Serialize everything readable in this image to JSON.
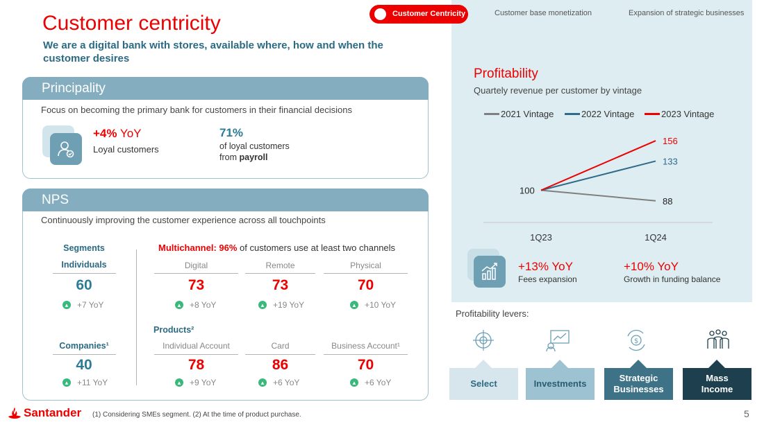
{
  "header": {
    "title": "Customer centricity",
    "subtitle": "We are a digital bank with stores, available where, how and when the customer desires"
  },
  "nav": {
    "active": "Customer Centricity",
    "tabs": [
      "Customer base monetization",
      "Expansion of strategic businesses"
    ]
  },
  "principality": {
    "title": "Principality",
    "description": "Focus on becoming the primary bank for customers in their financial decisions",
    "kpi1_value": "+4%",
    "kpi1_suffix": "YoY",
    "kpi1_label": "Loyal customers",
    "kpi2_value": "71%",
    "kpi2_line1": "of loyal customers",
    "kpi2_line2_prefix": "from",
    "kpi2_line2_bold": "payroll"
  },
  "nps": {
    "title": "NPS",
    "description": "Continuously improving the customer experience across all touchpoints",
    "segments_label": "Segments",
    "multichannel_bold": "Multichannel: 96%",
    "multichannel_rest": "of customers use at least two channels",
    "products_label": "Products²",
    "individuals": {
      "label": "Individuals",
      "value": "60",
      "yoy": "+7 YoY"
    },
    "companies": {
      "label": "Companies¹",
      "value": "40",
      "yoy": "+11 YoY"
    },
    "channels": [
      {
        "label": "Digital",
        "value": "73",
        "yoy": "+8 YoY"
      },
      {
        "label": "Remote",
        "value": "73",
        "yoy": "+19 YoY"
      },
      {
        "label": "Physical",
        "value": "70",
        "yoy": "+10 YoY"
      }
    ],
    "products": [
      {
        "label": "Individual Account",
        "value": "78",
        "yoy": "+9 YoY"
      },
      {
        "label": "Card",
        "value": "86",
        "yoy": "+6 YoY"
      },
      {
        "label": "Business Account¹",
        "value": "70",
        "yoy": "+6 YoY"
      }
    ]
  },
  "profitability": {
    "title": "Profitability",
    "subtitle": "Quartely revenue per customer by vintage",
    "fees_value": "+13% YoY",
    "fees_label": "Fees expansion",
    "funding_value": "+10% YoY",
    "funding_label": "Growth in funding balance"
  },
  "chart_data": {
    "type": "line",
    "title": "Quartely revenue per customer by vintage",
    "x": [
      "1Q23",
      "1Q24"
    ],
    "series": [
      {
        "name": "2021 Vintage",
        "values": [
          100,
          88
        ],
        "color": "#7f7f7f"
      },
      {
        "name": "2022 Vintage",
        "values": [
          100,
          133
        ],
        "color": "#2f6a8a"
      },
      {
        "name": "2023 Vintage",
        "values": [
          100,
          156
        ],
        "color": "#ec0000"
      }
    ],
    "start_label": "100",
    "ylim": [
      80,
      160
    ],
    "xlabel": "",
    "ylabel": "",
    "legend": "top"
  },
  "levers": {
    "title": "Profitability levers:",
    "items": [
      {
        "label": "Select",
        "icon": "target-icon",
        "bg": "#d7e6ed",
        "fg": "#2b6a83"
      },
      {
        "label": "Investments",
        "icon": "growth-chart-icon",
        "bg": "#9dc3d2",
        "fg": "#2b5c73"
      },
      {
        "label": "Strategic Businesses",
        "icon": "money-cycle-icon",
        "bg": "#3d7287",
        "fg": "#ffffff"
      },
      {
        "label": "Mass Income",
        "icon": "people-group-icon",
        "bg": "#1e3f4d",
        "fg": "#ffffff"
      }
    ]
  },
  "footer": {
    "brand": "Santander",
    "note": "(1) Considering SMEs segment. (2) At the time of product purchase.",
    "page": "5"
  }
}
